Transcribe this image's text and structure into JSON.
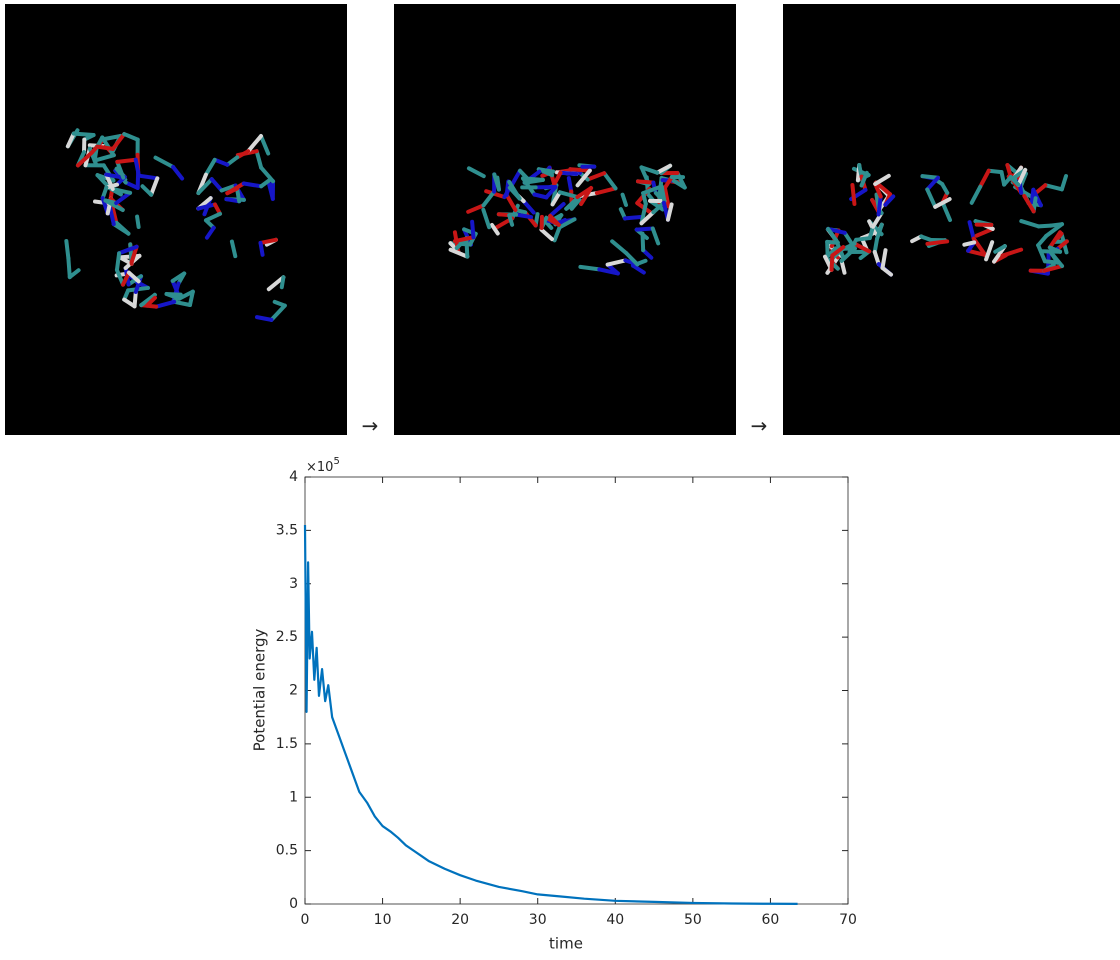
{
  "arrows": [
    "→",
    "→"
  ],
  "chart_data": {
    "type": "line",
    "x_label": "time",
    "y_label": "Potential energy",
    "y_exponent_base": "×10",
    "y_exponent": "5",
    "x": [
      0,
      0.2,
      0.4,
      0.6,
      0.9,
      1.2,
      1.5,
      1.8,
      2.2,
      2.6,
      3,
      3.5,
      4,
      4.5,
      5,
      5.5,
      6,
      6.5,
      7,
      8,
      9,
      10,
      11,
      12,
      13,
      14,
      15,
      16,
      18,
      20,
      22,
      25,
      28,
      30,
      33,
      36,
      40,
      45,
      50,
      55,
      60,
      63.5
    ],
    "series": [
      {
        "color": "#0072bd",
        "values": [
          3.55,
          1.8,
          3.2,
          2.3,
          2.55,
          2.1,
          2.4,
          1.95,
          2.2,
          1.9,
          2.05,
          1.75,
          1.65,
          1.55,
          1.45,
          1.35,
          1.25,
          1.15,
          1.05,
          0.95,
          0.82,
          0.73,
          0.68,
          0.62,
          0.55,
          0.5,
          0.45,
          0.4,
          0.33,
          0.27,
          0.22,
          0.16,
          0.12,
          0.09,
          0.07,
          0.05,
          0.03,
          0.02,
          0.01,
          0.005,
          0.002,
          0.001
        ]
      }
    ],
    "xlim": [
      0,
      70
    ],
    "xticks": [
      0,
      10,
      20,
      30,
      40,
      50,
      60,
      70
    ],
    "ylim": [
      0,
      4
    ],
    "yticks": [
      0,
      0.5,
      1,
      1.5,
      2,
      2.5,
      3,
      3.5,
      4
    ]
  }
}
